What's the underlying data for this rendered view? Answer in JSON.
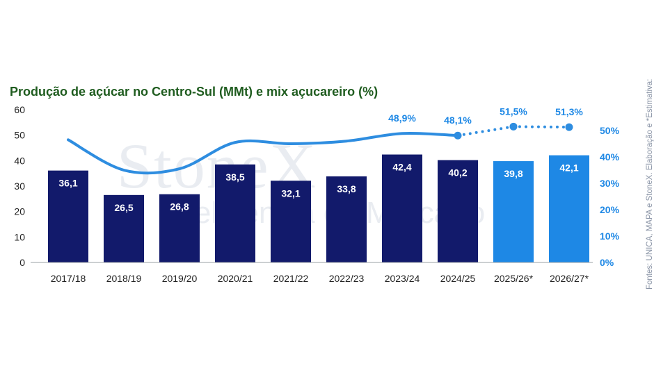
{
  "title": "Produção de açúcar no Centro-Sul (MMt) e mix açucareiro (%)",
  "source_note": "Fontes: UNICA, MAPA e StoneX. Elaboração e *Estimativa:",
  "watermark": {
    "brand": "StoneX",
    "tagline": "Inteligência de Mercado"
  },
  "colors": {
    "historical_bar": "#121a6b",
    "estimate_bar": "#1e88e5",
    "mix_line": "#2e8de0",
    "label_blue": "#1e88e5",
    "title": "#1f5c1f"
  },
  "chart_data": {
    "type": "bar",
    "title": "Produção de açúcar no Centro-Sul (MMt) e mix açucareiro (%)",
    "categories": [
      "2017/18",
      "2018/19",
      "2019/20",
      "2020/21",
      "2021/22",
      "2022/23",
      "2023/24",
      "2024/25",
      "2025/26*",
      "2026/27*"
    ],
    "bar_value_labels": [
      "36,1",
      "26,5",
      "26,8",
      "38,5",
      "32,1",
      "33,8",
      "42,4",
      "40,2",
      "39,8",
      "42,1"
    ],
    "series": [
      {
        "type": "bar",
        "axis": "left",
        "values": [
          36.1,
          26.5,
          26.8,
          38.5,
          32.1,
          33.8,
          42.4,
          40.2,
          39.8,
          42.1
        ],
        "estimate_flags": [
          false,
          false,
          false,
          false,
          false,
          false,
          false,
          false,
          true,
          true
        ]
      },
      {
        "type": "line",
        "axis": "right",
        "smooth": true,
        "values": [
          46.5,
          35.0,
          35.5,
          45.5,
          45.0,
          46.0,
          48.9,
          48.1,
          null,
          null
        ],
        "labels": [
          "",
          "",
          "",
          "",
          "",
          "",
          "48,9%",
          "48,1%",
          "",
          ""
        ]
      },
      {
        "type": "line",
        "axis": "right",
        "dotted": true,
        "markers": true,
        "values": [
          null,
          null,
          null,
          null,
          null,
          null,
          null,
          48.1,
          51.5,
          51.3
        ],
        "labels": [
          "",
          "",
          "",
          "",
          "",
          "",
          "",
          "",
          "51,5%",
          "51,3%"
        ]
      }
    ],
    "y_left": {
      "min": 0,
      "max": 60,
      "ticks": [
        "0",
        "10",
        "20",
        "30",
        "40",
        "50",
        "60"
      ]
    },
    "y_right": {
      "min": 0,
      "max": 57.9,
      "ticks": [
        "0%",
        "10%",
        "20%",
        "30%",
        "40%",
        "50%"
      ]
    },
    "grid": false,
    "legend": "none"
  }
}
